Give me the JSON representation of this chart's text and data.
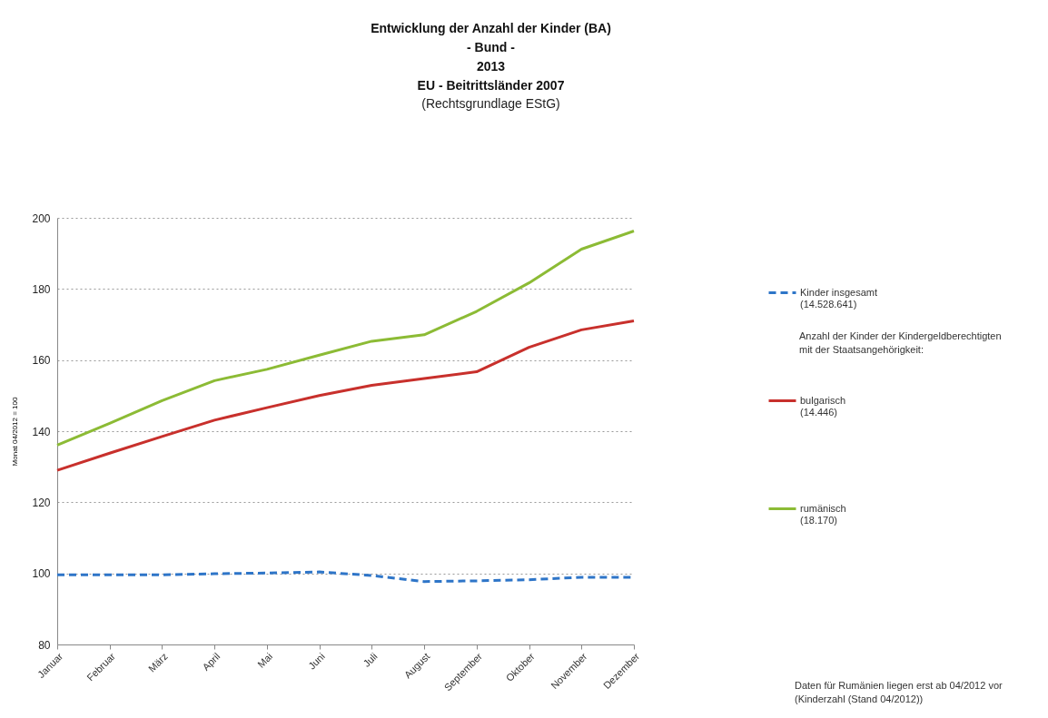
{
  "chart_data": {
    "type": "line",
    "title": "Entwicklung der Anzahl der Kinder (BA)\n- Bund -\n2013\nEU - Beitrittsländer 2007",
    "subtitle": "(Rechtsgrundlage EStG)",
    "ylabel": "Monat 04/2012 = 100",
    "categories": [
      "Januar",
      "Februar",
      "März",
      "April",
      "Mai",
      "Juni",
      "Juli",
      "August",
      "September",
      "Oktober",
      "November",
      "Dezember"
    ],
    "series": [
      {
        "name": "Kinder insgesamt\n(14.528.641)",
        "color": "#2e75c8",
        "line_style": "dashed",
        "values": [
          99.6,
          99.6,
          99.6,
          99.9,
          100.1,
          100.4,
          99.4,
          97.7,
          97.9,
          98.2,
          98.9,
          98.9
        ]
      },
      {
        "name": "bulgarisch\n(14.446)",
        "color": "#c8302c",
        "line_style": "solid",
        "values": [
          129,
          133.8,
          138.5,
          143.1,
          146.6,
          150,
          152.9,
          154.8,
          156.7,
          163.6,
          168.5,
          171
        ]
      },
      {
        "name": "rumänisch\n(18.170)",
        "color": "#8cbb35",
        "line_style": "solid",
        "values": [
          136.1,
          142.2,
          148.6,
          154.2,
          157.4,
          161.4,
          165.3,
          167.1,
          173.7,
          181.7,
          191.2,
          196.3
        ]
      }
    ],
    "ylim": [
      80,
      200
    ],
    "yticks": [
      80,
      100,
      120,
      140,
      160,
      180,
      200
    ],
    "grid": "y",
    "legend": "right",
    "annotations": [
      "Anzahl der Kinder der Kindergeldberechtigten\nmit der Staatsangehörigkeit:",
      "Daten für Rumänien liegen erst ab 04/2012 vor\n(Kinderzahl (Stand 04/2012))"
    ]
  }
}
